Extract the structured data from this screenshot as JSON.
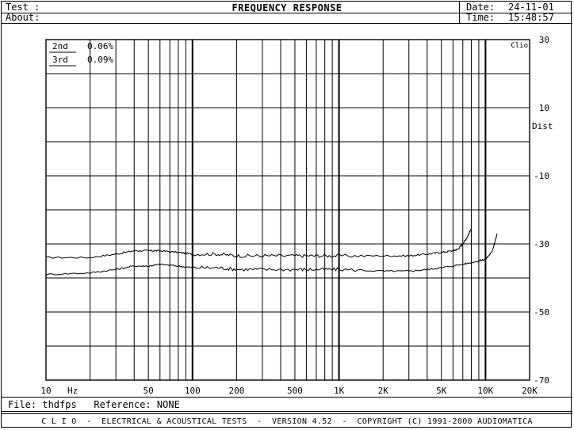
{
  "header": {
    "test_label": "Test :",
    "about_label": "About:",
    "title": "FREQUENCY RESPONSE",
    "date_label": "Date:",
    "date_value": "24-11-01",
    "time_label": "Time:",
    "time_value": "15:48:57"
  },
  "footer": {
    "file_label": "File:",
    "file_value": "thdfps",
    "reference_label": "Reference:",
    "reference_value": "NONE",
    "banner": "C L I O  -  ELECTRICAL & ACOUSTICAL TESTS  -  VERSION 4.52  -  COPYRIGHT (C) 1991-2000 AUDIOMATICA"
  },
  "chart_data": {
    "type": "line",
    "corner_label": "Clio",
    "x_unit": "Hz",
    "right_axis_label": "Dist",
    "x_scale": "log",
    "xlim": [
      10,
      20000
    ],
    "ylim": [
      -70,
      30
    ],
    "x_ticks": [
      {
        "value": 10,
        "label": "10"
      },
      {
        "value": 50,
        "label": "50"
      },
      {
        "value": 100,
        "label": "100"
      },
      {
        "value": 200,
        "label": "200"
      },
      {
        "value": 500,
        "label": "500"
      },
      {
        "value": 1000,
        "label": "1K"
      },
      {
        "value": 2000,
        "label": "2K"
      },
      {
        "value": 5000,
        "label": "5K"
      },
      {
        "value": 10000,
        "label": "10K"
      },
      {
        "value": 20000,
        "label": "20K"
      }
    ],
    "y_ticks": [
      30,
      10,
      -10,
      -30,
      -50,
      -70
    ],
    "grid": true,
    "legend": [
      {
        "name": "2nd",
        "value": "0.06%"
      },
      {
        "name": "3rd",
        "value": "0.09%"
      }
    ],
    "series": [
      {
        "name": "2nd",
        "x": [
          10,
          20,
          30,
          40,
          50,
          60,
          80,
          100,
          150,
          200,
          300,
          500,
          700,
          1000,
          2000,
          3000,
          4000,
          5000,
          6000,
          6500,
          7000,
          7500,
          8000
        ],
        "y": [
          -34,
          -34,
          -33,
          -32,
          -32,
          -32,
          -32.5,
          -33,
          -33,
          -33.5,
          -33.5,
          -33.5,
          -33.5,
          -33.5,
          -33.5,
          -33.5,
          -33,
          -32.5,
          -32,
          -31.5,
          -30,
          -28,
          -25.5
        ]
      },
      {
        "name": "3rd",
        "x": [
          10,
          20,
          30,
          40,
          50,
          60,
          80,
          100,
          150,
          200,
          300,
          500,
          700,
          1000,
          2000,
          3000,
          4000,
          5000,
          7000,
          9000,
          10000,
          11000,
          11500,
          12000
        ],
        "y": [
          -39,
          -38.5,
          -37.5,
          -36.5,
          -36.5,
          -36,
          -36.5,
          -37,
          -37,
          -37.5,
          -37.5,
          -37.5,
          -37.5,
          -37.5,
          -38,
          -38,
          -37.5,
          -37,
          -36,
          -35,
          -34.5,
          -32.5,
          -30,
          -27
        ]
      }
    ]
  }
}
